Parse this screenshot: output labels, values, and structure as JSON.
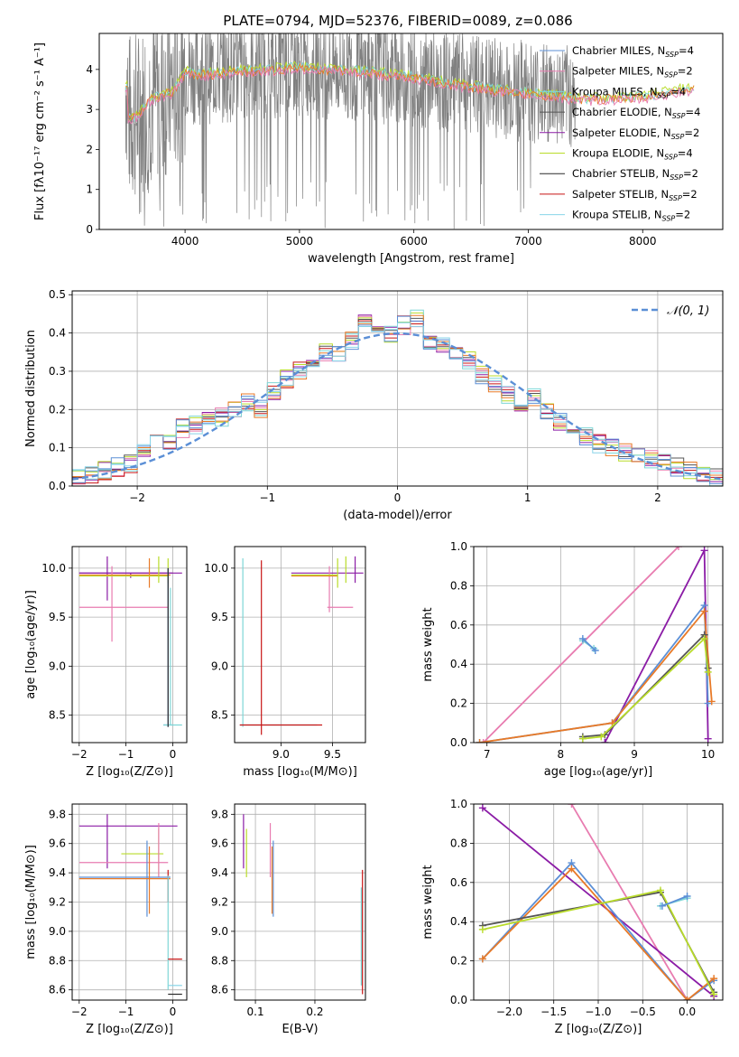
{
  "figure_title": "PLATE=0794, MJD=52376, FIBERID=0089, z=0.086",
  "colors": {
    "chabrier_miles": "#5b8fd6",
    "salpeter_miles": "#e87cb0",
    "kroupa_miles": "#7ed6d6",
    "chabrier_elodie": "#555555",
    "salpeter_elodie": "#8b1ca6",
    "kroupa_elodie": "#b9dc2a",
    "chabrier_stelib": "#2a2a2a",
    "salpeter_stelib": "#c81414",
    "kroupa_stelib": "#88d4e8",
    "orange": "#e87a28",
    "data": "#808080",
    "gaussian": "#5b8fd6",
    "grid": "#b0b0b0"
  },
  "chart_data": [
    {
      "id": "spectrum",
      "type": "line",
      "title": "PLATE=0794, MJD=52376, FIBERID=0089, z=0.086",
      "xlabel": "wavelength [Angstrom, rest frame]",
      "ylabel": "Flux [fλ10⁻¹⁷ erg cm⁻² s⁻¹ A⁻¹]",
      "xlim": [
        3250,
        8700
      ],
      "ylim": [
        0,
        4.9
      ],
      "xticks": [
        "4000",
        "5000",
        "6000",
        "7000",
        "8000"
      ],
      "yticks": [
        "0",
        "1",
        "2",
        "3",
        "4"
      ],
      "grid": false,
      "legend_position": "right",
      "legend": [
        "Chabrier MILES, N_SSP=4",
        "Salpeter MILES, N_SSP=2",
        "Kroupa MILES, N_SSP=4",
        "Chabrier ELODIE, N_SSP=4",
        "Salpeter ELODIE, N_SSP=2",
        "Kroupa ELODIE, N_SSP=4",
        "Chabrier STELIB, N_SSP=2",
        "Salpeter STELIB, N_SSP=2",
        "Kroupa STELIB, N_SSP=2"
      ],
      "model_continuum": {
        "x": [
          3500,
          3600,
          3700,
          3800,
          3900,
          4000,
          4100,
          4300,
          4500,
          4800,
          5000,
          5200,
          5500,
          6000,
          6500,
          7000,
          7500,
          8000,
          8500
        ],
        "y": [
          2.8,
          2.9,
          3.3,
          3.4,
          3.5,
          4.0,
          3.9,
          3.95,
          4.0,
          4.05,
          4.1,
          4.05,
          4.0,
          3.85,
          3.6,
          3.45,
          3.3,
          3.35,
          3.6
        ]
      }
    },
    {
      "id": "residuals",
      "type": "line",
      "xlabel": "(data-model)/error",
      "ylabel": "Normed distribution",
      "xlim": [
        -2.5,
        2.5
      ],
      "ylim": [
        0,
        0.51
      ],
      "xticks": [
        "−2",
        "−1",
        "0",
        "1",
        "2"
      ],
      "yticks": [
        "0.0",
        "0.1",
        "0.2",
        "0.3",
        "0.4",
        "0.5"
      ],
      "grid": true,
      "legend_position": "top-right",
      "legend": [
        "𝒩(0, 1)"
      ],
      "gaussian": {
        "mean": 0,
        "sigma": 1
      },
      "hist_bin_width": 0.1,
      "hist_centers": [
        -2.45,
        -2.35,
        -2.25,
        -2.15,
        -2.05,
        -1.95,
        -1.85,
        -1.75,
        -1.65,
        -1.55,
        -1.45,
        -1.35,
        -1.25,
        -1.15,
        -1.05,
        -0.95,
        -0.85,
        -0.75,
        -0.65,
        -0.55,
        -0.45,
        -0.35,
        -0.25,
        -0.15,
        -0.05,
        0.05,
        0.15,
        0.25,
        0.35,
        0.45,
        0.55,
        0.65,
        0.75,
        0.85,
        0.95,
        1.05,
        1.15,
        1.25,
        1.35,
        1.45,
        1.55,
        1.65,
        1.75,
        1.85,
        1.95,
        2.05,
        2.15,
        2.25,
        2.35,
        2.45
      ],
      "hist_values": [
        0.03,
        0.03,
        0.04,
        0.05,
        0.06,
        0.09,
        0.11,
        0.12,
        0.15,
        0.16,
        0.17,
        0.18,
        0.2,
        0.22,
        0.2,
        0.25,
        0.28,
        0.3,
        0.31,
        0.35,
        0.34,
        0.38,
        0.43,
        0.41,
        0.4,
        0.42,
        0.44,
        0.38,
        0.37,
        0.35,
        0.33,
        0.29,
        0.27,
        0.24,
        0.22,
        0.23,
        0.2,
        0.17,
        0.15,
        0.13,
        0.11,
        0.1,
        0.09,
        0.08,
        0.07,
        0.06,
        0.05,
        0.04,
        0.03,
        0.02
      ]
    },
    {
      "id": "age_vs_Z",
      "type": "scatter",
      "xlabel": "Z [log₁₀(Z/Z⊙)]",
      "ylabel": "age  [log₁₀(age/yr)]",
      "xlim": [
        -2.15,
        0.3
      ],
      "ylim": [
        8.22,
        10.22
      ],
      "xticks": [
        "−2",
        "−1",
        "0"
      ],
      "yticks": [
        "8.5",
        "9.0",
        "9.5",
        "10.0"
      ],
      "grid": true,
      "errorbars": [
        {
          "x": -0.9,
          "xlo": -2.0,
          "xhi": 0.0,
          "y": 9.95,
          "ylo": 9.9,
          "yhi": 9.95,
          "color": "salpeter_elodie"
        },
        {
          "x": -1.4,
          "xlo": -1.4,
          "xhi": -1.4,
          "y": 9.9,
          "ylo": 9.67,
          "yhi": 10.12,
          "color": "salpeter_elodie"
        },
        {
          "x": -0.9,
          "xlo": -2.0,
          "xhi": 0.2,
          "y": 9.95,
          "ylo": 9.95,
          "yhi": 9.95,
          "color": "salpeter_elodie"
        },
        {
          "x": -1.0,
          "xlo": -2.0,
          "xhi": -0.1,
          "y": 9.6,
          "ylo": 9.6,
          "yhi": 9.6,
          "color": "salpeter_miles"
        },
        {
          "x": -1.3,
          "xlo": -1.3,
          "xhi": -1.3,
          "y": 9.6,
          "ylo": 9.25,
          "yhi": 10.02,
          "color": "salpeter_miles"
        },
        {
          "x": -1.0,
          "xlo": -2.0,
          "xhi": -0.05,
          "y": 9.93,
          "ylo": 9.93,
          "yhi": 9.93,
          "color": "orange"
        },
        {
          "x": -0.5,
          "xlo": -0.5,
          "xhi": -0.5,
          "y": 9.93,
          "ylo": 9.8,
          "yhi": 10.1,
          "color": "orange"
        },
        {
          "x": -1.0,
          "xlo": -2.0,
          "xhi": -0.1,
          "y": 9.92,
          "ylo": 9.92,
          "yhi": 9.92,
          "color": "kroupa_elodie"
        },
        {
          "x": -0.3,
          "xlo": -0.3,
          "xhi": -0.3,
          "y": 9.92,
          "ylo": 9.85,
          "yhi": 10.12,
          "color": "kroupa_elodie"
        },
        {
          "x": -0.1,
          "xlo": -0.1,
          "xhi": -0.1,
          "y": 9.95,
          "ylo": 9.85,
          "yhi": 10.1,
          "color": "kroupa_elodie"
        },
        {
          "x": -0.1,
          "xlo": -0.2,
          "xhi": 0.0,
          "y": 8.4,
          "ylo": 8.38,
          "yhi": 10.0,
          "color": "chabrier_miles"
        },
        {
          "x": -0.05,
          "xlo": -0.2,
          "xhi": 0.2,
          "y": 8.4,
          "ylo": 8.4,
          "yhi": 9.8,
          "color": "kroupa_miles"
        },
        {
          "x": -0.1,
          "xlo": -0.1,
          "xhi": -0.1,
          "y": 8.4,
          "ylo": 8.38,
          "yhi": 10.0,
          "color": "chabrier_stelib"
        }
      ]
    },
    {
      "id": "age_vs_mass",
      "type": "scatter",
      "xlabel": "mass [log₁₀(M/M⊙)]",
      "ylabel": "",
      "xlim": [
        8.55,
        9.82
      ],
      "ylim": [
        8.22,
        10.22
      ],
      "xticks": [
        "9.0",
        "9.5"
      ],
      "yticks": [
        "8.5",
        "9.0",
        "9.5",
        "10.0"
      ],
      "grid": true,
      "errorbars": [
        {
          "x": 8.63,
          "xlo": 8.63,
          "xhi": 8.63,
          "y": 8.4,
          "ylo": 8.38,
          "yhi": 10.1,
          "color": "kroupa_miles"
        },
        {
          "x": 8.63,
          "xlo": 8.6,
          "xhi": 9.35,
          "y": 8.4,
          "ylo": 8.4,
          "yhi": 8.4,
          "color": "kroupa_stelib"
        },
        {
          "x": 8.81,
          "xlo": 8.81,
          "xhi": 8.81,
          "y": 8.4,
          "ylo": 8.3,
          "yhi": 10.08,
          "color": "salpeter_stelib"
        },
        {
          "x": 9.35,
          "xlo": 8.6,
          "xhi": 9.4,
          "y": 8.4,
          "ylo": 8.4,
          "yhi": 8.4,
          "color": "salpeter_stelib"
        },
        {
          "x": 9.5,
          "xlo": 9.1,
          "xhi": 9.8,
          "y": 9.95,
          "ylo": 9.95,
          "yhi": 9.95,
          "color": "salpeter_elodie"
        },
        {
          "x": 9.72,
          "xlo": 9.72,
          "xhi": 9.72,
          "y": 9.95,
          "ylo": 9.85,
          "yhi": 10.12,
          "color": "salpeter_elodie"
        },
        {
          "x": 9.47,
          "xlo": 9.47,
          "xhi": 9.47,
          "y": 9.6,
          "ylo": 9.55,
          "yhi": 10.02,
          "color": "salpeter_miles"
        },
        {
          "x": 9.55,
          "xlo": 9.45,
          "xhi": 9.7,
          "y": 9.6,
          "ylo": 9.6,
          "yhi": 9.6,
          "color": "salpeter_miles"
        },
        {
          "x": 9.3,
          "xlo": 9.1,
          "xhi": 9.55,
          "y": 9.92,
          "ylo": 9.92,
          "yhi": 9.92,
          "color": "orange"
        },
        {
          "x": 9.55,
          "xlo": 9.55,
          "xhi": 9.55,
          "y": 9.92,
          "ylo": 9.8,
          "yhi": 10.1,
          "color": "kroupa_elodie"
        },
        {
          "x": 9.5,
          "xlo": 9.1,
          "xhi": 9.55,
          "y": 9.93,
          "ylo": 9.93,
          "yhi": 9.93,
          "color": "kroupa_elodie"
        },
        {
          "x": 9.63,
          "xlo": 9.63,
          "xhi": 9.63,
          "y": 9.95,
          "ylo": 9.85,
          "yhi": 10.12,
          "color": "kroupa_elodie"
        }
      ]
    },
    {
      "id": "weight_vs_age",
      "type": "line",
      "xlabel": "age  [log₁₀(age/yr)]",
      "ylabel": "mass weight",
      "xlim": [
        6.82,
        10.2
      ],
      "ylim": [
        0,
        1.0
      ],
      "xticks": [
        "7",
        "8",
        "9",
        "10"
      ],
      "yticks": [
        "0.0",
        "0.2",
        "0.4",
        "0.6",
        "0.8",
        "1.0"
      ],
      "grid": true,
      "series": [
        {
          "color": "salpeter_miles",
          "x": [
            6.95,
            9.6
          ],
          "y": [
            0.0,
            1.0
          ]
        },
        {
          "color": "salpeter_elodie",
          "x": [
            8.6,
            9.95,
            10.0
          ],
          "y": [
            0.0,
            0.98,
            0.02
          ]
        },
        {
          "color": "chabrier_miles",
          "x": [
            6.9,
            8.7,
            9.95,
            10.0
          ],
          "y": [
            0.0,
            0.1,
            0.7,
            0.2
          ]
        },
        {
          "color": "orange",
          "x": [
            6.9,
            8.7,
            9.95,
            10.05
          ],
          "y": [
            0.0,
            0.1,
            0.67,
            0.21
          ]
        },
        {
          "color": "chabrier_elodie",
          "x": [
            8.3,
            8.6,
            9.95,
            10.0
          ],
          "y": [
            0.03,
            0.04,
            0.55,
            0.38
          ]
        },
        {
          "color": "kroupa_elodie",
          "x": [
            8.3,
            8.55,
            9.95,
            10.0
          ],
          "y": [
            0.02,
            0.03,
            0.53,
            0.36
          ]
        },
        {
          "color": "kroupa_miles",
          "x": [
            8.3,
            8.45
          ],
          "y": [
            0.52,
            0.48
          ]
        },
        {
          "color": "chabrier_miles",
          "x": [
            8.3,
            8.47
          ],
          "y": [
            0.53,
            0.47
          ]
        }
      ]
    },
    {
      "id": "mass_vs_Z",
      "type": "scatter",
      "xlabel": "Z [log₁₀(Z/Z⊙)]",
      "ylabel": "mass [log₁₀(M/M⊙)]",
      "xlim": [
        -2.15,
        0.3
      ],
      "ylim": [
        8.53,
        9.87
      ],
      "xticks": [
        "−2",
        "−1",
        "0"
      ],
      "yticks": [
        "8.6",
        "8.8",
        "9.0",
        "9.2",
        "9.4",
        "9.6",
        "9.8"
      ],
      "grid": true,
      "errorbars": [
        {
          "x": -1.0,
          "xlo": -2.0,
          "xhi": 0.1,
          "y": 9.72,
          "ylo": 9.72,
          "yhi": 9.72,
          "color": "salpeter_elodie"
        },
        {
          "x": -1.4,
          "xlo": -1.4,
          "xhi": -1.4,
          "y": 9.72,
          "ylo": 9.43,
          "yhi": 9.8,
          "color": "salpeter_elodie"
        },
        {
          "x": -0.6,
          "xlo": -1.1,
          "xhi": -0.2,
          "y": 9.53,
          "ylo": 9.53,
          "yhi": 9.53,
          "color": "kroupa_elodie"
        },
        {
          "x": -0.3,
          "xlo": -0.3,
          "xhi": -0.3,
          "y": 9.53,
          "ylo": 9.38,
          "yhi": 9.7,
          "color": "kroupa_elodie"
        },
        {
          "x": -1.1,
          "xlo": -2.0,
          "xhi": -0.1,
          "y": 9.47,
          "ylo": 9.47,
          "yhi": 9.47,
          "color": "salpeter_miles"
        },
        {
          "x": -0.3,
          "xlo": -0.3,
          "xhi": -0.3,
          "y": 9.47,
          "ylo": 9.37,
          "yhi": 9.74,
          "color": "salpeter_miles"
        },
        {
          "x": -1.0,
          "xlo": -2.0,
          "xhi": -0.05,
          "y": 9.37,
          "ylo": 9.37,
          "yhi": 9.37,
          "color": "chabrier_miles"
        },
        {
          "x": -0.55,
          "xlo": -0.55,
          "xhi": -0.55,
          "y": 9.37,
          "ylo": 9.1,
          "yhi": 9.62,
          "color": "chabrier_miles"
        },
        {
          "x": -1.0,
          "xlo": -2.0,
          "xhi": -0.05,
          "y": 9.36,
          "ylo": 9.36,
          "yhi": 9.36,
          "color": "orange"
        },
        {
          "x": -0.5,
          "xlo": -0.5,
          "xhi": -0.5,
          "y": 9.36,
          "ylo": 9.12,
          "yhi": 9.58,
          "color": "orange"
        },
        {
          "x": -0.1,
          "xlo": -0.1,
          "xhi": -0.1,
          "y": 9.36,
          "ylo": 9.2,
          "yhi": 9.42,
          "color": "salpeter_stelib"
        },
        {
          "x": -0.1,
          "xlo": -0.1,
          "xhi": -0.1,
          "y": 9.36,
          "ylo": 8.6,
          "yhi": 9.38,
          "color": "kroupa_miles"
        },
        {
          "x": 0.0,
          "xlo": -0.1,
          "xhi": 0.2,
          "y": 8.81,
          "ylo": 8.81,
          "yhi": 8.81,
          "color": "salpeter_stelib"
        },
        {
          "x": 0.0,
          "xlo": -0.1,
          "xhi": 0.2,
          "y": 8.63,
          "ylo": 8.63,
          "yhi": 8.63,
          "color": "kroupa_stelib"
        },
        {
          "x": 0.0,
          "xlo": -0.1,
          "xhi": 0.2,
          "y": 8.57,
          "ylo": 8.57,
          "yhi": 8.57,
          "color": "chabrier_stelib"
        }
      ]
    },
    {
      "id": "mass_vs_ebv",
      "type": "scatter",
      "xlabel": "E(B-V)",
      "ylabel": "",
      "xlim": [
        0.065,
        0.285
      ],
      "ylim": [
        8.53,
        9.87
      ],
      "xticks": [
        "0.1",
        "0.2"
      ],
      "yticks": [
        "8.6",
        "8.8",
        "9.0",
        "9.2",
        "9.4",
        "9.6",
        "9.8"
      ],
      "grid": true,
      "errorbars": [
        {
          "x": 0.08,
          "xlo": 0.08,
          "xhi": 0.08,
          "y": 9.6,
          "ylo": 9.43,
          "yhi": 9.8,
          "color": "salpeter_elodie"
        },
        {
          "x": 0.085,
          "xlo": 0.085,
          "xhi": 0.085,
          "y": 9.55,
          "ylo": 9.37,
          "yhi": 9.7,
          "color": "kroupa_elodie"
        },
        {
          "x": 0.125,
          "xlo": 0.125,
          "xhi": 0.125,
          "y": 9.5,
          "ylo": 9.37,
          "yhi": 9.74,
          "color": "salpeter_miles"
        },
        {
          "x": 0.13,
          "xlo": 0.13,
          "xhi": 0.13,
          "y": 9.37,
          "ylo": 9.1,
          "yhi": 9.62,
          "color": "chabrier_miles"
        },
        {
          "x": 0.128,
          "xlo": 0.128,
          "xhi": 0.128,
          "y": 9.36,
          "ylo": 9.12,
          "yhi": 9.58,
          "color": "orange"
        },
        {
          "x": 0.28,
          "xlo": 0.28,
          "xhi": 0.28,
          "y": 9.0,
          "ylo": 8.57,
          "yhi": 9.42,
          "color": "salpeter_stelib"
        },
        {
          "x": 0.278,
          "xlo": 0.278,
          "xhi": 0.278,
          "y": 9.0,
          "ylo": 8.63,
          "yhi": 9.3,
          "color": "kroupa_miles"
        }
      ]
    },
    {
      "id": "weight_vs_Z",
      "type": "line",
      "xlabel": "Z [log₁₀(Z/Z⊙)]",
      "ylabel": "mass weight",
      "xlim": [
        -2.4,
        0.4
      ],
      "ylim": [
        0,
        1.0
      ],
      "xticks": [
        "−2.0",
        "−1.5",
        "−1.0",
        "−0.5",
        "0.0"
      ],
      "yticks": [
        "0.0",
        "0.2",
        "0.4",
        "0.6",
        "0.8",
        "1.0"
      ],
      "grid": true,
      "series": [
        {
          "color": "salpeter_miles",
          "x": [
            -1.3,
            0.0
          ],
          "y": [
            1.0,
            0.0
          ]
        },
        {
          "color": "salpeter_elodie",
          "x": [
            -2.3,
            0.3
          ],
          "y": [
            0.98,
            0.02
          ]
        },
        {
          "color": "chabrier_miles",
          "x": [
            -2.3,
            -1.3,
            0.0,
            0.3
          ],
          "y": [
            0.21,
            0.7,
            0.0,
            0.1
          ]
        },
        {
          "color": "orange",
          "x": [
            -2.3,
            -1.3,
            0.0,
            0.3
          ],
          "y": [
            0.21,
            0.67,
            0.0,
            0.11
          ]
        },
        {
          "color": "chabrier_elodie",
          "x": [
            -2.3,
            -0.3,
            0.3
          ],
          "y": [
            0.38,
            0.55,
            0.04
          ]
        },
        {
          "color": "kroupa_elodie",
          "x": [
            -2.3,
            -0.3,
            0.3
          ],
          "y": [
            0.36,
            0.56,
            0.03
          ]
        },
        {
          "color": "kroupa_miles",
          "x": [
            -0.3,
            0.0
          ],
          "y": [
            0.48,
            0.52
          ]
        },
        {
          "color": "chabrier_miles",
          "x": [
            -0.28,
            0.0
          ],
          "y": [
            0.48,
            0.53
          ]
        }
      ]
    }
  ]
}
